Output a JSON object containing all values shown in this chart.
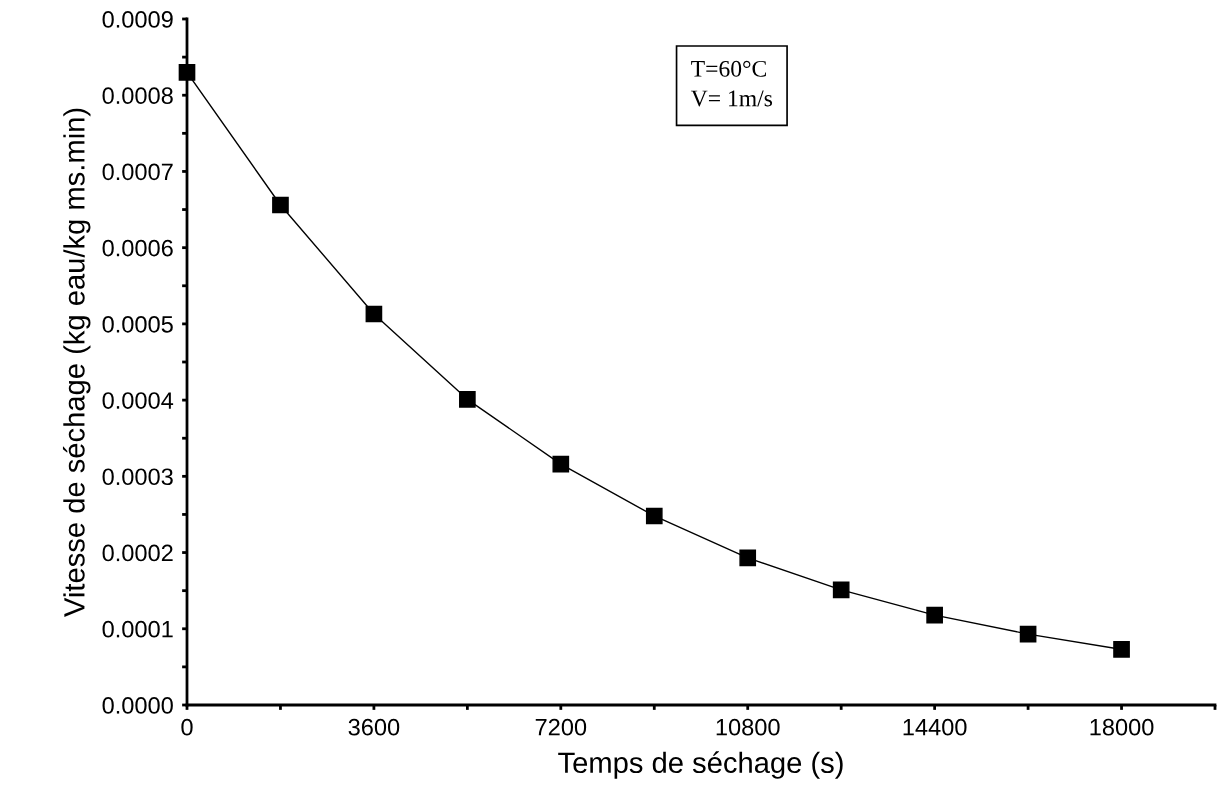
{
  "chart_data": {
    "type": "line",
    "xlabel": "Temps de séchage (s)",
    "ylabel": "Vitesse de séchage (kg eau/kg ms.min)",
    "x": [
      0,
      1800,
      3600,
      5400,
      7200,
      9000,
      10800,
      12600,
      14400,
      16200,
      18000
    ],
    "series": [
      {
        "color": "#000000",
        "values": [
          0.00083,
          0.000656,
          0.000513,
          0.000401,
          0.000316,
          0.000248,
          0.000193,
          0.000151,
          0.000118,
          9.3e-05,
          7.3e-05
        ]
      }
    ],
    "marker": "square",
    "line_style": "solid",
    "grid": false,
    "legend": false,
    "xlim": [
      0,
      19800
    ],
    "ylim": [
      0,
      0.0009
    ],
    "xticks": [
      0,
      {
        "value": 1800,
        "label": null
      },
      3600,
      {
        "value": 5400,
        "label": null
      },
      7200,
      {
        "value": 9000,
        "label": null
      },
      10800,
      {
        "value": 12600,
        "label": null
      },
      14400,
      {
        "value": 16200,
        "label": null
      },
      18000,
      {
        "value": 19800,
        "label": null
      }
    ],
    "yticks": [
      {
        "value": 0,
        "label": "0.0000"
      },
      {
        "value": 5e-05,
        "label": null
      },
      {
        "value": 0.0001,
        "label": "0.0001"
      },
      {
        "value": 0.00015,
        "label": null
      },
      {
        "value": 0.0002,
        "label": "0.0002"
      },
      {
        "value": 0.00025,
        "label": null
      },
      {
        "value": 0.0003,
        "label": "0.0003"
      },
      {
        "value": 0.00035,
        "label": null
      },
      {
        "value": 0.0004,
        "label": "0.0004"
      },
      {
        "value": 0.00045,
        "label": null
      },
      {
        "value": 0.0005,
        "label": "0.0005"
      },
      {
        "value": 0.00055,
        "label": null
      },
      {
        "value": 0.0006,
        "label": "0.0006"
      },
      {
        "value": 0.00065,
        "label": null
      },
      {
        "value": 0.0007,
        "label": "0.0007"
      },
      {
        "value": 0.00075,
        "label": null
      },
      {
        "value": 0.0008,
        "label": "0.0008"
      },
      {
        "value": 0.00085,
        "label": null
      },
      {
        "value": 0.0009,
        "label": "0.0009"
      }
    ],
    "annotations": [
      "T=60°C\nV= 1m/s"
    ]
  }
}
